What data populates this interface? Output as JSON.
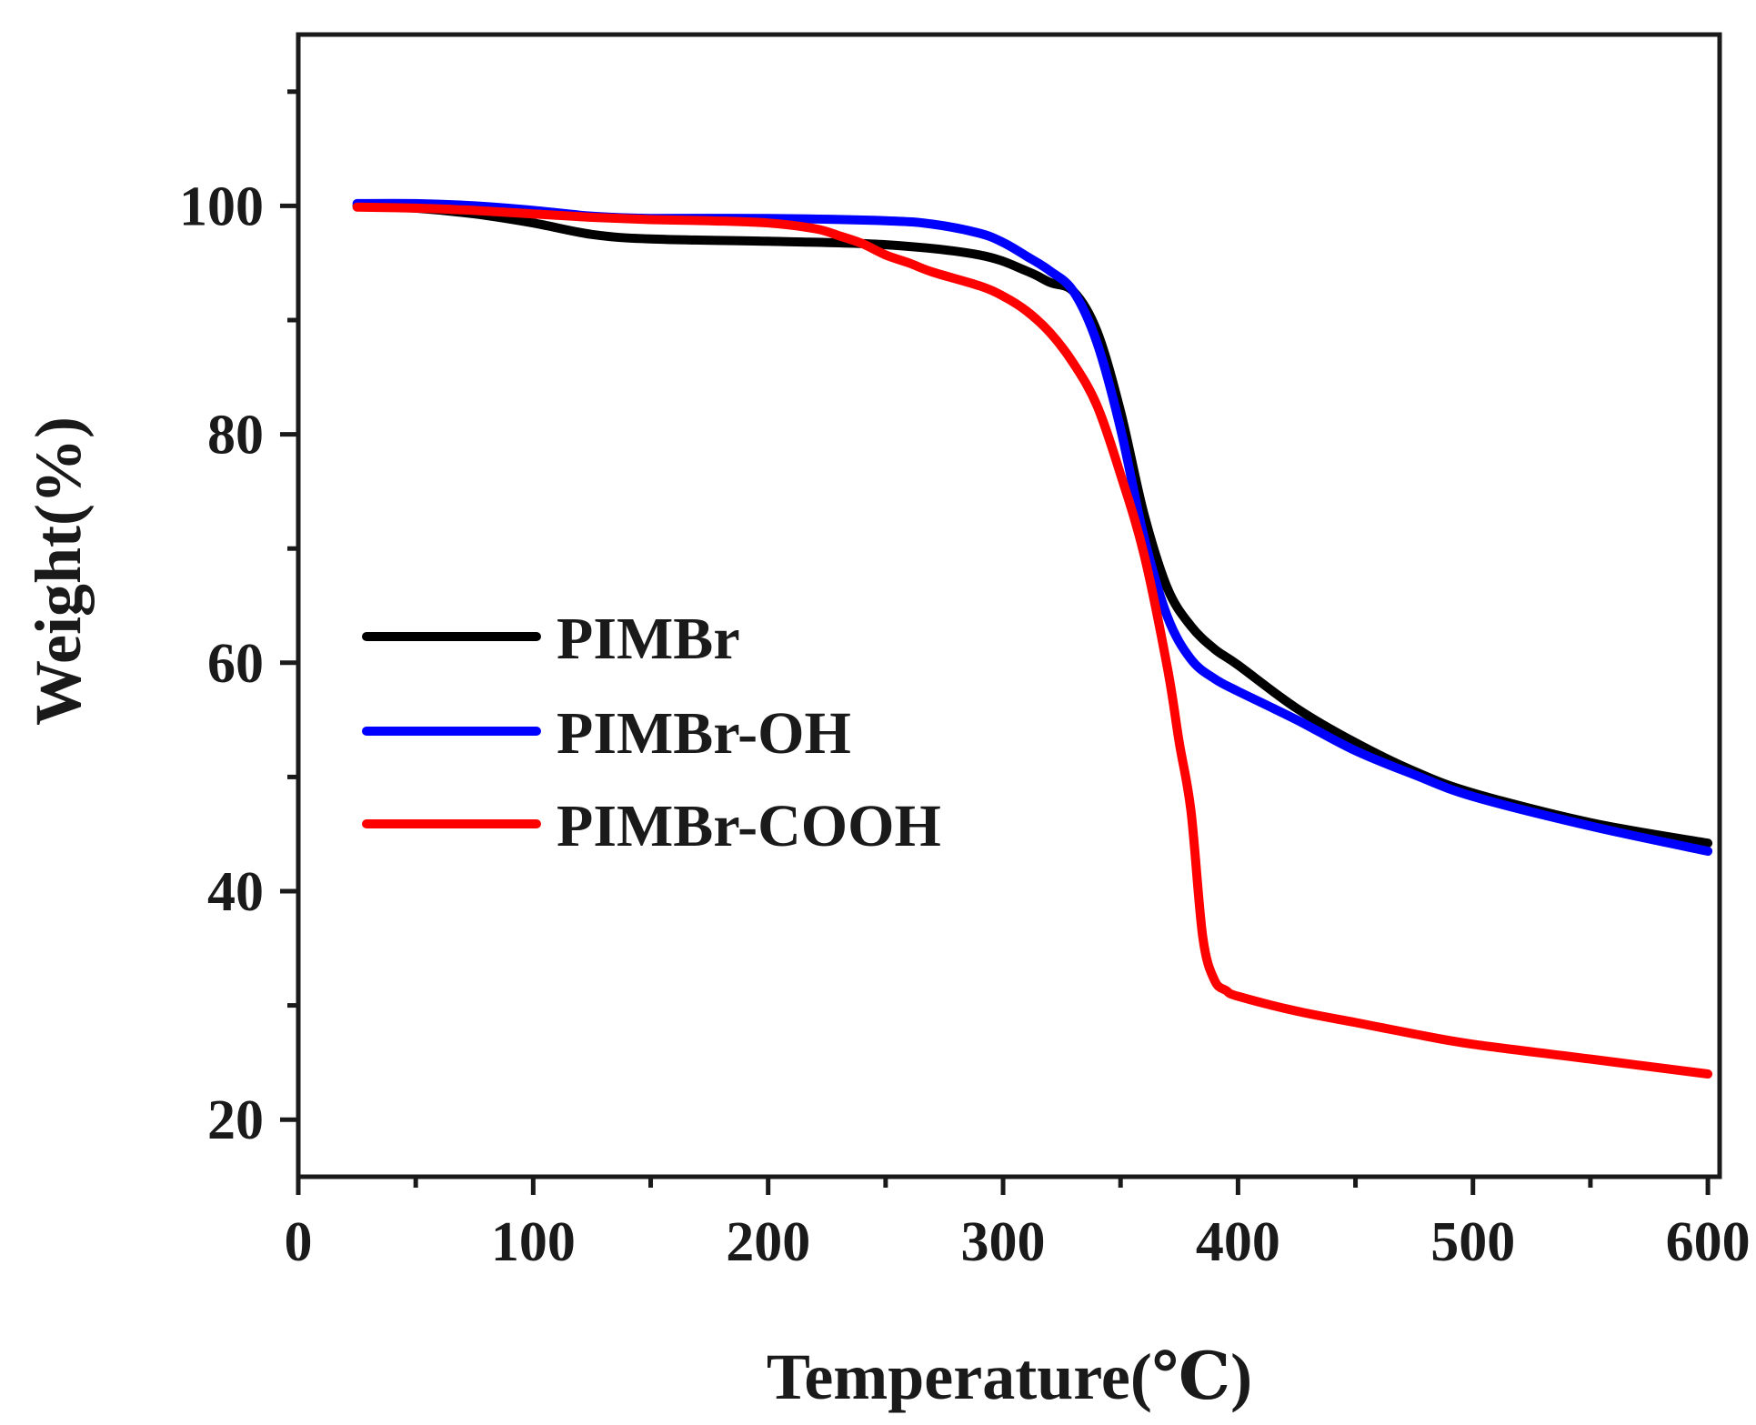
{
  "chart_data": {
    "type": "line",
    "title": "",
    "xlabel": "Temperature(℃)",
    "ylabel": "Weight(%)",
    "xlim": [
      0,
      605
    ],
    "ylim": [
      15,
      115
    ],
    "xticks": [
      0,
      100,
      200,
      300,
      400,
      500,
      600
    ],
    "xtick_labels": [
      "0",
      "100",
      "200",
      "300",
      "400",
      "500",
      "600"
    ],
    "yticks": [
      20,
      40,
      60,
      80,
      100
    ],
    "ytick_labels": [
      "20",
      "40",
      "60",
      "80",
      "100"
    ],
    "grid": false,
    "legend_position": "middle-left",
    "series": [
      {
        "name": "PIMBr",
        "color": "#000000",
        "x": [
          25,
          50,
          75,
          100,
          125,
          150,
          200,
          250,
          290,
          310,
          320,
          330,
          340,
          350,
          360,
          370,
          380,
          390,
          400,
          425,
          450,
          475,
          500,
          550,
          600
        ],
        "y": [
          100,
          99.8,
          99.3,
          98.5,
          97.5,
          97.1,
          96.9,
          96.6,
          95.7,
          94.3,
          93.3,
          92.5,
          89,
          82,
          73,
          66.5,
          63.2,
          61.2,
          59.8,
          56,
          53,
          50.5,
          48.6,
          46,
          44.2
        ]
      },
      {
        "name": "PIMBr-OH",
        "color": "#0000ff",
        "x": [
          25,
          50,
          75,
          100,
          125,
          150,
          200,
          250,
          270,
          290,
          300,
          310,
          320,
          330,
          340,
          350,
          360,
          370,
          380,
          390,
          400,
          425,
          450,
          475,
          500,
          550,
          600
        ],
        "y": [
          100.2,
          100.2,
          100,
          99.6,
          99.1,
          98.9,
          98.9,
          98.7,
          98.4,
          97.6,
          96.8,
          95.6,
          94.3,
          92.5,
          88,
          80.5,
          71,
          64,
          60.3,
          58.6,
          57.5,
          55,
          52.3,
          50.2,
          48.3,
          45.7,
          43.5
        ]
      },
      {
        "name": "PIMBr-COOH",
        "color": "#ff0000",
        "x": [
          25,
          50,
          75,
          100,
          125,
          150,
          175,
          200,
          220,
          230,
          240,
          250,
          260,
          270,
          290,
          300,
          310,
          320,
          330,
          340,
          350,
          360,
          370,
          375,
          380,
          385,
          390,
          395,
          400,
          425,
          450,
          475,
          500,
          550,
          600
        ],
        "y": [
          99.9,
          99.8,
          99.6,
          99.3,
          99,
          98.8,
          98.7,
          98.5,
          98,
          97.4,
          96.7,
          95.7,
          95,
          94.2,
          93,
          92.1,
          90.8,
          88.9,
          86.2,
          82.5,
          76.5,
          69.5,
          59.5,
          53,
          47,
          36,
          32.2,
          31.3,
          30.8,
          29.5,
          28.5,
          27.5,
          26.6,
          25.3,
          24
        ]
      }
    ]
  }
}
